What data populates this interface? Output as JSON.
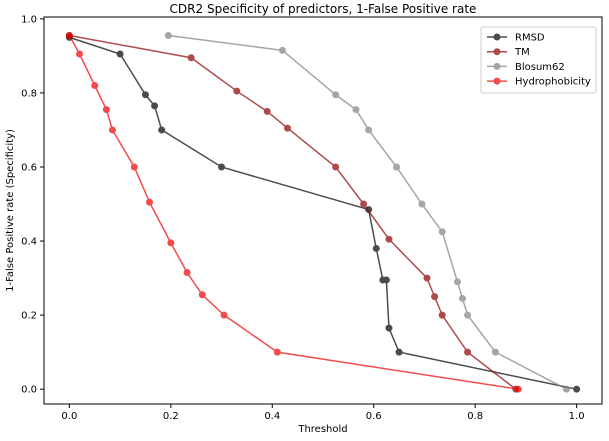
{
  "chart_data": {
    "type": "line",
    "title": "CDR2 Specificity of predictors, 1-False Positive rate",
    "xlabel": "Threshold",
    "ylabel": "1-False Positive rate (Specificity)",
    "xlim": [
      -0.05,
      1.05
    ],
    "ylim": [
      -0.04,
      1.005
    ],
    "xticks": [
      0.0,
      0.2,
      0.4,
      0.6,
      0.8,
      1.0
    ],
    "xtick_labels": [
      "0.0",
      "0.2",
      "0.4",
      "0.6",
      "0.8",
      "1.0"
    ],
    "yticks": [
      0.0,
      0.2,
      0.4,
      0.6,
      0.8,
      1.0
    ],
    "ytick_labels": [
      "0.0",
      "0.2",
      "0.4",
      "0.6",
      "0.8",
      "1.0"
    ],
    "grid": false,
    "legend_position": "top-right",
    "series": [
      {
        "name": "RMSD",
        "color": "#000000",
        "x": [
          0.0,
          0.1,
          0.15,
          0.168,
          0.182,
          0.3,
          0.59,
          0.605,
          0.618,
          0.625,
          0.63,
          0.65,
          1.0
        ],
        "y": [
          0.95,
          0.905,
          0.795,
          0.765,
          0.7,
          0.6,
          0.485,
          0.38,
          0.295,
          0.295,
          0.165,
          0.1,
          0.0
        ]
      },
      {
        "name": "TM",
        "color": "#8b0000",
        "x": [
          0.0,
          0.24,
          0.33,
          0.39,
          0.43,
          0.525,
          0.58,
          0.63,
          0.705,
          0.72,
          0.735,
          0.785,
          0.88
        ],
        "y": [
          0.955,
          0.895,
          0.805,
          0.75,
          0.705,
          0.6,
          0.5,
          0.405,
          0.3,
          0.25,
          0.2,
          0.1,
          0.0
        ]
      },
      {
        "name": "Blosum62",
        "color": "#808080",
        "x": [
          0.195,
          0.42,
          0.525,
          0.565,
          0.59,
          0.645,
          0.695,
          0.735,
          0.765,
          0.775,
          0.785,
          0.84,
          0.98
        ],
        "y": [
          0.955,
          0.915,
          0.795,
          0.755,
          0.7,
          0.6,
          0.5,
          0.425,
          0.29,
          0.245,
          0.2,
          0.1,
          0.0
        ]
      },
      {
        "name": "Hydrophobicity",
        "color": "#ee0000",
        "x": [
          0.0,
          0.02,
          0.05,
          0.073,
          0.085,
          0.128,
          0.158,
          0.2,
          0.232,
          0.262,
          0.305,
          0.41,
          0.885
        ],
        "y": [
          0.955,
          0.905,
          0.82,
          0.755,
          0.7,
          0.6,
          0.505,
          0.395,
          0.315,
          0.255,
          0.2,
          0.1,
          0.0
        ]
      }
    ]
  }
}
